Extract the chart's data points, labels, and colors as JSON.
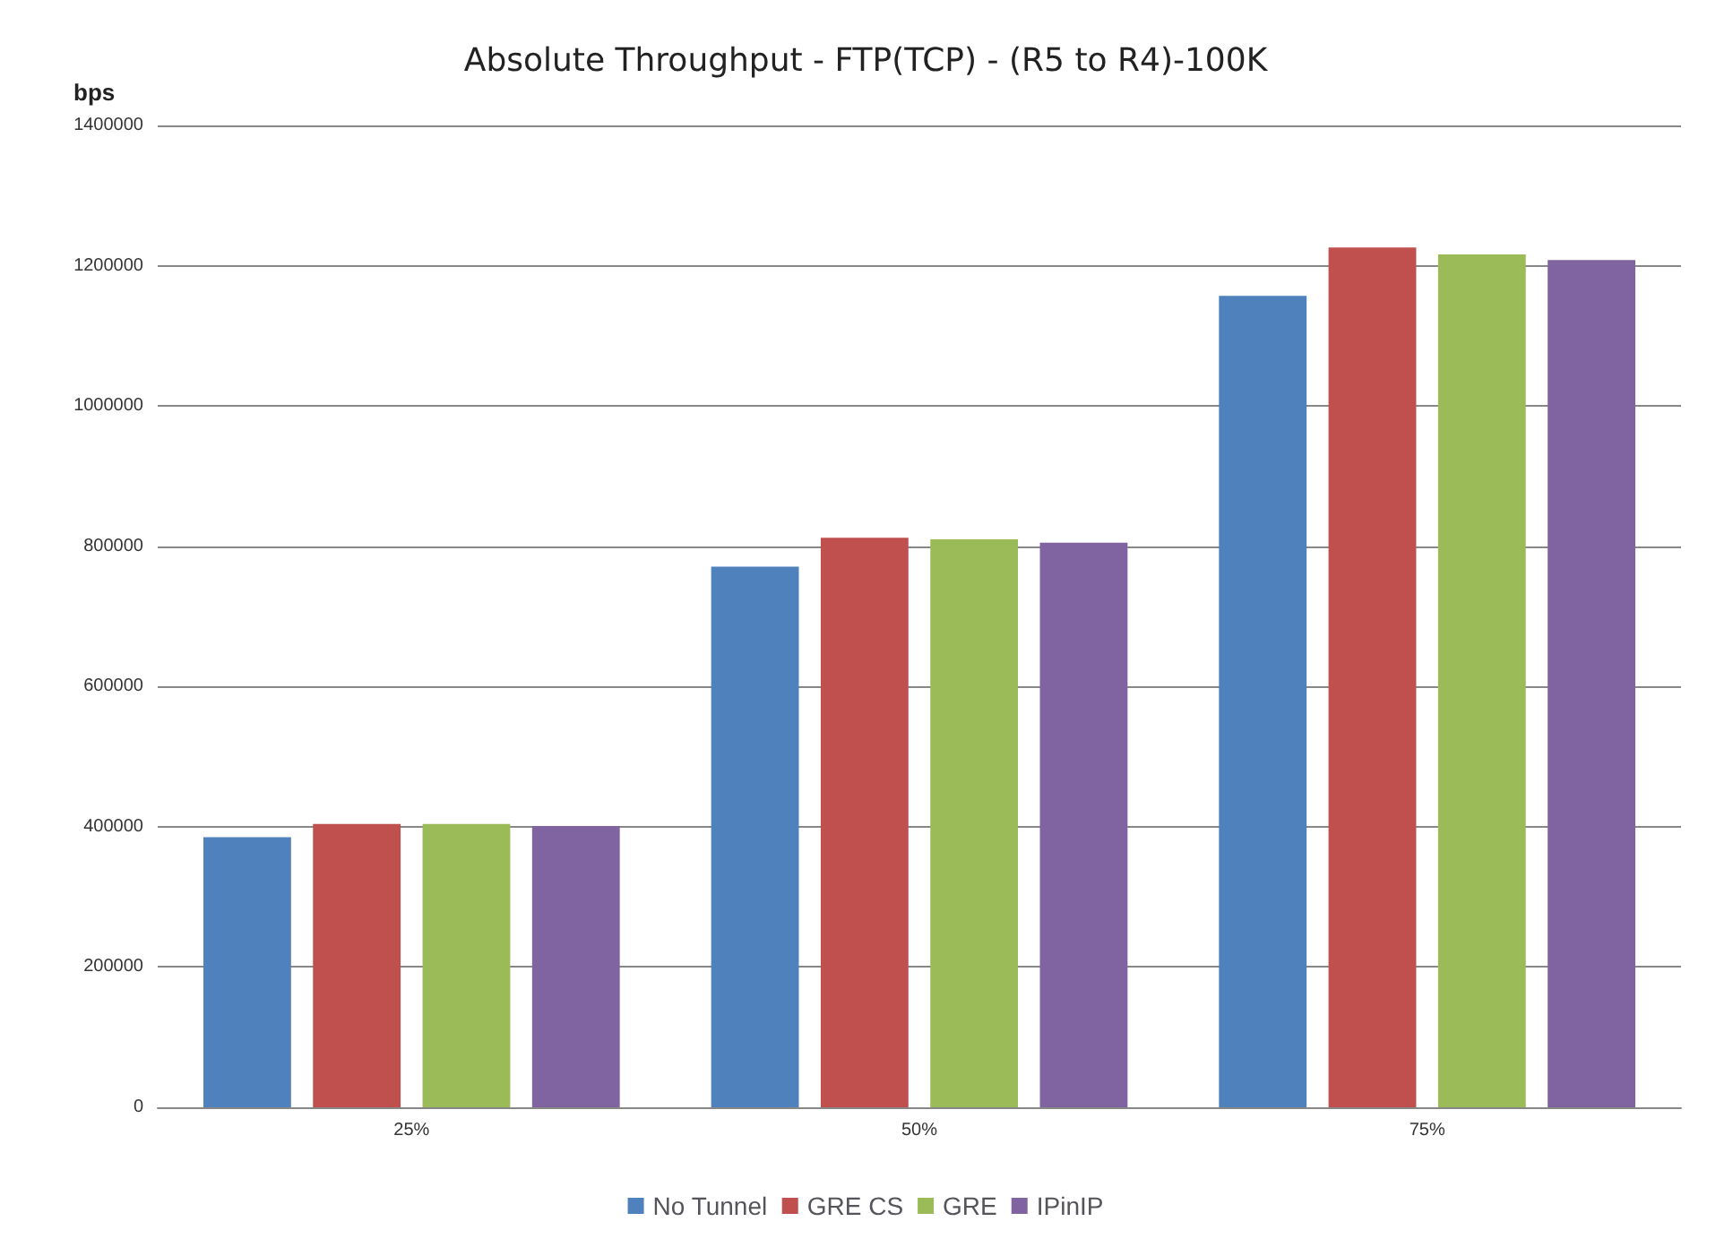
{
  "chart_data": {
    "type": "bar",
    "title": "Absolute Throughput - FTP(TCP) - (R5 to R4)-100K",
    "ylabel": "bps",
    "categories": [
      "25%",
      "50%",
      "75%"
    ],
    "series": [
      {
        "name": "No Tunnel",
        "color": "#4f81bd",
        "values": [
          385000,
          771000,
          1157000
        ]
      },
      {
        "name": "GRE CS",
        "color": "#c0504d",
        "values": [
          404000,
          812000,
          1226000
        ]
      },
      {
        "name": "GRE",
        "color": "#9bbb59",
        "values": [
          404000,
          810000,
          1216000
        ]
      },
      {
        "name": "IPinIP",
        "color": "#8064a2",
        "values": [
          401000,
          805000,
          1208000
        ]
      }
    ],
    "ylim": [
      0,
      1400000
    ],
    "yticks": [
      0,
      200000,
      400000,
      600000,
      800000,
      1000000,
      1200000,
      1400000
    ],
    "grid": "y",
    "legend": "bottom"
  }
}
